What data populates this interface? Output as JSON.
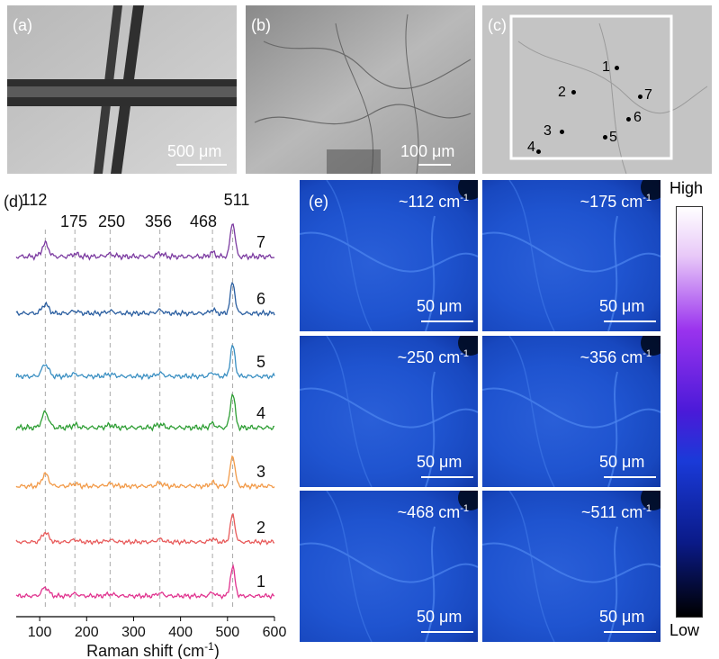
{
  "panel_a": {
    "label": "(a)",
    "scale": "500 μm"
  },
  "panel_b": {
    "label": "(b)",
    "scale": "100 μm"
  },
  "panel_c": {
    "label": "(c)",
    "points": [
      "1",
      "2",
      "3",
      "4",
      "5",
      "6",
      "7"
    ]
  },
  "panel_d": {
    "label": "(d)",
    "xlabel_main": "Raman shift (cm",
    "xlabel_sup": "-1",
    "xlabel_end": ")",
    "xticks": [
      "100",
      "200",
      "300",
      "400",
      "500",
      "600"
    ],
    "peak_labels": [
      "112",
      "175",
      "250",
      "356",
      "468",
      "511"
    ],
    "curve_labels": [
      "1",
      "2",
      "3",
      "4",
      "5",
      "6",
      "7"
    ]
  },
  "panel_e": {
    "label": "(e)",
    "maps": [
      {
        "wn": "~112 cm",
        "scale": "50 μm"
      },
      {
        "wn": "~175 cm",
        "scale": "50 μm"
      },
      {
        "wn": "~250 cm",
        "scale": "50 μm"
      },
      {
        "wn": "~356 cm",
        "scale": "50 μm"
      },
      {
        "wn": "~468 cm",
        "scale": "50 μm"
      },
      {
        "wn": "~511 cm",
        "scale": "50 μm"
      }
    ],
    "wn_sup": "-1",
    "colorbar_high": "High",
    "colorbar_low": "Low"
  },
  "chart_data": {
    "type": "line",
    "xlabel": "Raman shift (cm-1)",
    "xlim": [
      50,
      600
    ],
    "peaks": [
      112,
      175,
      250,
      356,
      468,
      511
    ],
    "series": [
      {
        "name": "1",
        "color": "#e0338f"
      },
      {
        "name": "2",
        "color": "#e85a5a"
      },
      {
        "name": "3",
        "color": "#f29a48"
      },
      {
        "name": "4",
        "color": "#2e9e34"
      },
      {
        "name": "5",
        "color": "#3a8fc2"
      },
      {
        "name": "6",
        "color": "#2a5ea0"
      },
      {
        "name": "7",
        "color": "#7b3aa0"
      }
    ]
  }
}
